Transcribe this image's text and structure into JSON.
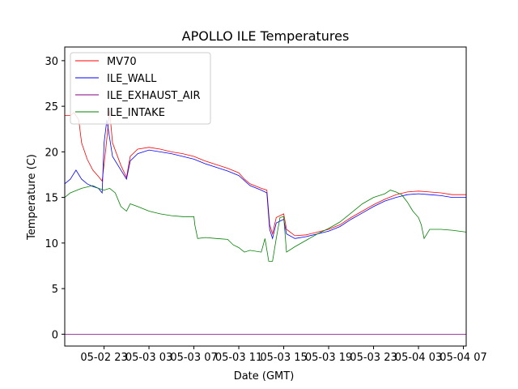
{
  "chart_data": {
    "type": "line",
    "title": "APOLLO ILE Temperatures",
    "xlabel": "Date (GMT)",
    "ylabel": "Temperature (C)",
    "x_tick_labels": [
      "05-02 23",
      "05-03 03",
      "05-03 07",
      "05-03 11",
      "05-03 15",
      "05-03 19",
      "05-03 23",
      "05-04 03",
      "05-04 07"
    ],
    "x_tick_hours": [
      23,
      27,
      31,
      35,
      39,
      43,
      47,
      51,
      55
    ],
    "xlim": [
      "05-02 19:30",
      "05-04 07:15"
    ],
    "y_ticks": [
      0,
      5,
      10,
      15,
      20,
      25,
      30
    ],
    "ylim": [
      -1.3,
      31.5
    ],
    "grid": false,
    "legend_position": "upper-left",
    "series": [
      {
        "name": "MV70",
        "color": "#ff0000",
        "points": [
          [
            "05-02 19:30",
            24.0
          ],
          [
            "05-02 20:00",
            24.0
          ],
          [
            "05-02 20:20",
            24.3
          ],
          [
            "05-02 20:45",
            23.5
          ],
          [
            "05-02 21:00",
            21.0
          ],
          [
            "05-02 21:30",
            19.2
          ],
          [
            "05-02 22:00",
            18.0
          ],
          [
            "05-02 22:30",
            17.3
          ],
          [
            "05-02 22:50",
            16.8
          ],
          [
            "05-02 23:10",
            20.5
          ],
          [
            "05-02 23:30",
            24.5
          ],
          [
            "05-02 23:45",
            21.0
          ],
          [
            "05-03 00:30",
            18.5
          ],
          [
            "05-03 01:00",
            17.2
          ],
          [
            "05-03 01:20",
            19.5
          ],
          [
            "05-03 02:00",
            20.3
          ],
          [
            "05-03 03:00",
            20.5
          ],
          [
            "05-03 04:00",
            20.3
          ],
          [
            "05-03 05:00",
            20.0
          ],
          [
            "05-03 06:00",
            19.8
          ],
          [
            "05-03 07:00",
            19.5
          ],
          [
            "05-03 08:00",
            19.0
          ],
          [
            "05-03 09:00",
            18.6
          ],
          [
            "05-03 10:00",
            18.2
          ],
          [
            "05-03 11:00",
            17.7
          ],
          [
            "05-03 11:30",
            17.0
          ],
          [
            "05-03 12:00",
            16.5
          ],
          [
            "05-03 13:00",
            16.0
          ],
          [
            "05-03 13:30",
            15.8
          ],
          [
            "05-03 13:45",
            12.0
          ],
          [
            "05-03 14:00",
            11.0
          ],
          [
            "05-03 14:20",
            12.8
          ],
          [
            "05-03 15:00",
            13.2
          ],
          [
            "05-03 15:15",
            11.5
          ],
          [
            "05-03 16:00",
            10.8
          ],
          [
            "05-03 17:00",
            10.9
          ],
          [
            "05-03 18:00",
            11.2
          ],
          [
            "05-03 19:00",
            11.5
          ],
          [
            "05-03 20:00",
            12.0
          ],
          [
            "05-03 21:00",
            12.8
          ],
          [
            "05-03 22:00",
            13.5
          ],
          [
            "05-03 23:00",
            14.2
          ],
          [
            "05-04 00:00",
            14.8
          ],
          [
            "05-04 01:00",
            15.3
          ],
          [
            "05-04 02:00",
            15.6
          ],
          [
            "05-04 03:00",
            15.7
          ],
          [
            "05-04 04:00",
            15.6
          ],
          [
            "05-04 05:00",
            15.5
          ],
          [
            "05-04 06:00",
            15.3
          ],
          [
            "05-04 07:15",
            15.3
          ]
        ]
      },
      {
        "name": "ILE_WALL",
        "color": "#0000ff",
        "points": [
          [
            "05-02 19:30",
            16.5
          ],
          [
            "05-02 20:00",
            17.0
          ],
          [
            "05-02 20:30",
            18.0
          ],
          [
            "05-02 21:00",
            17.0
          ],
          [
            "05-02 21:30",
            16.5
          ],
          [
            "05-02 22:00",
            16.2
          ],
          [
            "05-02 22:30",
            16.0
          ],
          [
            "05-02 22:50",
            15.5
          ],
          [
            "05-02 23:00",
            21.0
          ],
          [
            "05-02 23:15",
            23.5
          ],
          [
            "05-02 23:30",
            21.5
          ],
          [
            "05-02 23:45",
            19.5
          ],
          [
            "05-03 00:30",
            18.0
          ],
          [
            "05-03 01:00",
            17.0
          ],
          [
            "05-03 01:20",
            19.0
          ],
          [
            "05-03 02:00",
            19.8
          ],
          [
            "05-03 03:00",
            20.2
          ],
          [
            "05-03 04:00",
            20.0
          ],
          [
            "05-03 05:00",
            19.8
          ],
          [
            "05-03 06:00",
            19.5
          ],
          [
            "05-03 07:00",
            19.2
          ],
          [
            "05-03 08:00",
            18.7
          ],
          [
            "05-03 09:00",
            18.3
          ],
          [
            "05-03 10:00",
            17.9
          ],
          [
            "05-03 11:00",
            17.4
          ],
          [
            "05-03 12:00",
            16.3
          ],
          [
            "05-03 13:00",
            15.8
          ],
          [
            "05-03 13:30",
            15.5
          ],
          [
            "05-03 13:45",
            11.5
          ],
          [
            "05-03 14:00",
            10.5
          ],
          [
            "05-03 14:20",
            12.2
          ],
          [
            "05-03 15:00",
            12.6
          ],
          [
            "05-03 15:15",
            11.0
          ],
          [
            "05-03 16:00",
            10.5
          ],
          [
            "05-03 17:00",
            10.7
          ],
          [
            "05-03 18:00",
            11.0
          ],
          [
            "05-03 19:00",
            11.3
          ],
          [
            "05-03 20:00",
            11.8
          ],
          [
            "05-03 21:00",
            12.6
          ],
          [
            "05-03 22:00",
            13.3
          ],
          [
            "05-03 23:00",
            14.0
          ],
          [
            "05-04 00:00",
            14.6
          ],
          [
            "05-04 01:00",
            15.0
          ],
          [
            "05-04 02:00",
            15.3
          ],
          [
            "05-04 03:00",
            15.4
          ],
          [
            "05-04 04:00",
            15.3
          ],
          [
            "05-04 05:00",
            15.2
          ],
          [
            "05-04 06:00",
            15.0
          ],
          [
            "05-04 07:15",
            15.0
          ]
        ]
      },
      {
        "name": "ILE_EXHAUST_AIR",
        "color": "#800080",
        "points": [
          [
            "05-02 19:30",
            0.0
          ],
          [
            "05-04 07:15",
            0.0
          ]
        ]
      },
      {
        "name": "ILE_INTAKE",
        "color": "#008000",
        "points": [
          [
            "05-02 19:30",
            15.0
          ],
          [
            "05-02 20:00",
            15.5
          ],
          [
            "05-02 21:00",
            16.0
          ],
          [
            "05-02 22:00",
            16.3
          ],
          [
            "05-02 22:30",
            16.0
          ],
          [
            "05-02 23:00",
            15.8
          ],
          [
            "05-02 23:30",
            16.0
          ],
          [
            "05-03 00:00",
            15.5
          ],
          [
            "05-03 00:30",
            14.0
          ],
          [
            "05-03 01:00",
            13.5
          ],
          [
            "05-03 01:20",
            14.3
          ],
          [
            "05-03 02:00",
            14.0
          ],
          [
            "05-03 03:00",
            13.5
          ],
          [
            "05-03 04:00",
            13.2
          ],
          [
            "05-03 05:00",
            13.0
          ],
          [
            "05-03 06:00",
            12.9
          ],
          [
            "05-03 07:00",
            12.9
          ],
          [
            "05-03 07:05",
            12.0
          ],
          [
            "05-03 07:20",
            10.5
          ],
          [
            "05-03 08:00",
            10.6
          ],
          [
            "05-03 09:00",
            10.5
          ],
          [
            "05-03 10:00",
            10.4
          ],
          [
            "05-03 10:30",
            9.8
          ],
          [
            "05-03 11:00",
            9.5
          ],
          [
            "05-03 11:30",
            9.0
          ],
          [
            "05-03 12:00",
            9.2
          ],
          [
            "05-03 13:00",
            9.0
          ],
          [
            "05-03 13:20",
            10.5
          ],
          [
            "05-03 13:40",
            8.0
          ],
          [
            "05-03 14:00",
            8.0
          ],
          [
            "05-03 14:20",
            10.5
          ],
          [
            "05-03 14:40",
            12.8
          ],
          [
            "05-03 15:00",
            12.9
          ],
          [
            "05-03 15:15",
            9.0
          ],
          [
            "05-03 16:00",
            9.6
          ],
          [
            "05-03 17:00",
            10.3
          ],
          [
            "05-03 18:00",
            11.0
          ],
          [
            "05-03 19:00",
            11.6
          ],
          [
            "05-03 20:00",
            12.3
          ],
          [
            "05-03 21:00",
            13.3
          ],
          [
            "05-03 22:00",
            14.3
          ],
          [
            "05-03 23:00",
            15.0
          ],
          [
            "05-04 00:00",
            15.4
          ],
          [
            "05-04 00:30",
            15.8
          ],
          [
            "05-04 01:00",
            15.6
          ],
          [
            "05-04 01:30",
            15.3
          ],
          [
            "05-04 02:00",
            14.5
          ],
          [
            "05-04 02:30",
            13.5
          ],
          [
            "05-04 03:00",
            12.8
          ],
          [
            "05-04 03:15",
            12.0
          ],
          [
            "05-04 03:30",
            10.5
          ],
          [
            "05-04 04:00",
            11.5
          ],
          [
            "05-04 05:00",
            11.5
          ],
          [
            "05-04 06:00",
            11.4
          ],
          [
            "05-04 07:15",
            11.2
          ]
        ]
      }
    ]
  }
}
